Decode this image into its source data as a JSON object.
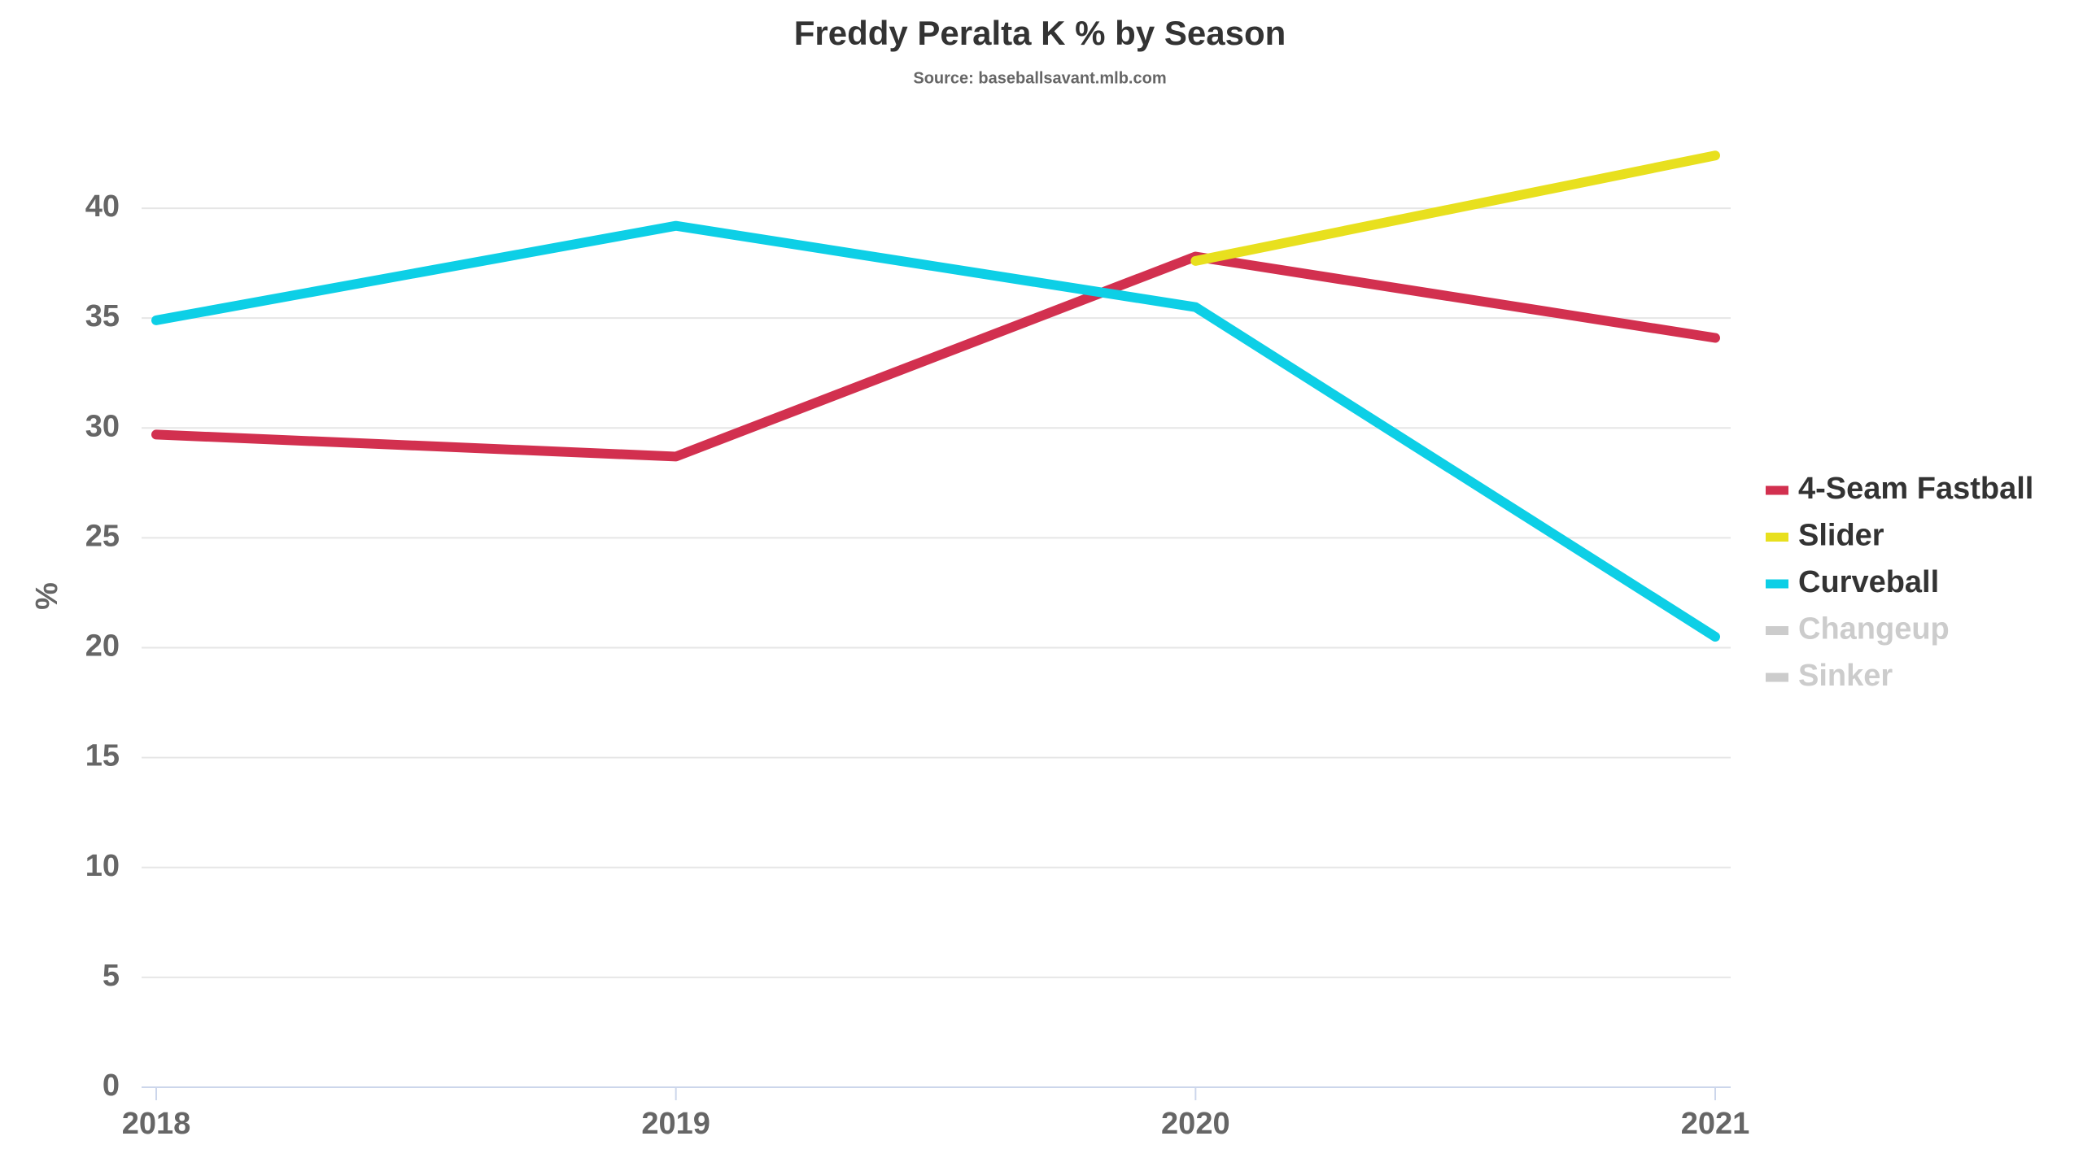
{
  "chart_data": {
    "type": "line",
    "title": "Freddy Peralta K % by Season",
    "subtitle": "Source: baseballsavant.mlb.com",
    "y_label": "%",
    "categories": [
      "2018",
      "2019",
      "2020",
      "2021"
    ],
    "series": [
      {
        "name": "4-Seam Fastball",
        "color": "#d2304f",
        "values": [
          29.7,
          28.7,
          37.8,
          34.1
        ]
      },
      {
        "name": "Slider",
        "color": "#e8e01e",
        "values": [
          null,
          null,
          37.6,
          42.4
        ]
      },
      {
        "name": "Curveball",
        "color": "#0dcfe6",
        "values": [
          34.9,
          39.2,
          35.5,
          20.5
        ]
      },
      {
        "name": "Changeup",
        "color": "#cccccc",
        "hidden": true,
        "values": [
          null,
          null,
          null,
          null
        ]
      },
      {
        "name": "Sinker",
        "color": "#cccccc",
        "hidden": true,
        "values": [
          null,
          null,
          null,
          null
        ]
      }
    ],
    "ylim": [
      0,
      43
    ],
    "yticks": [
      0,
      5,
      10,
      15,
      20,
      25,
      30,
      35,
      40
    ],
    "grid": true,
    "legend": "right"
  }
}
